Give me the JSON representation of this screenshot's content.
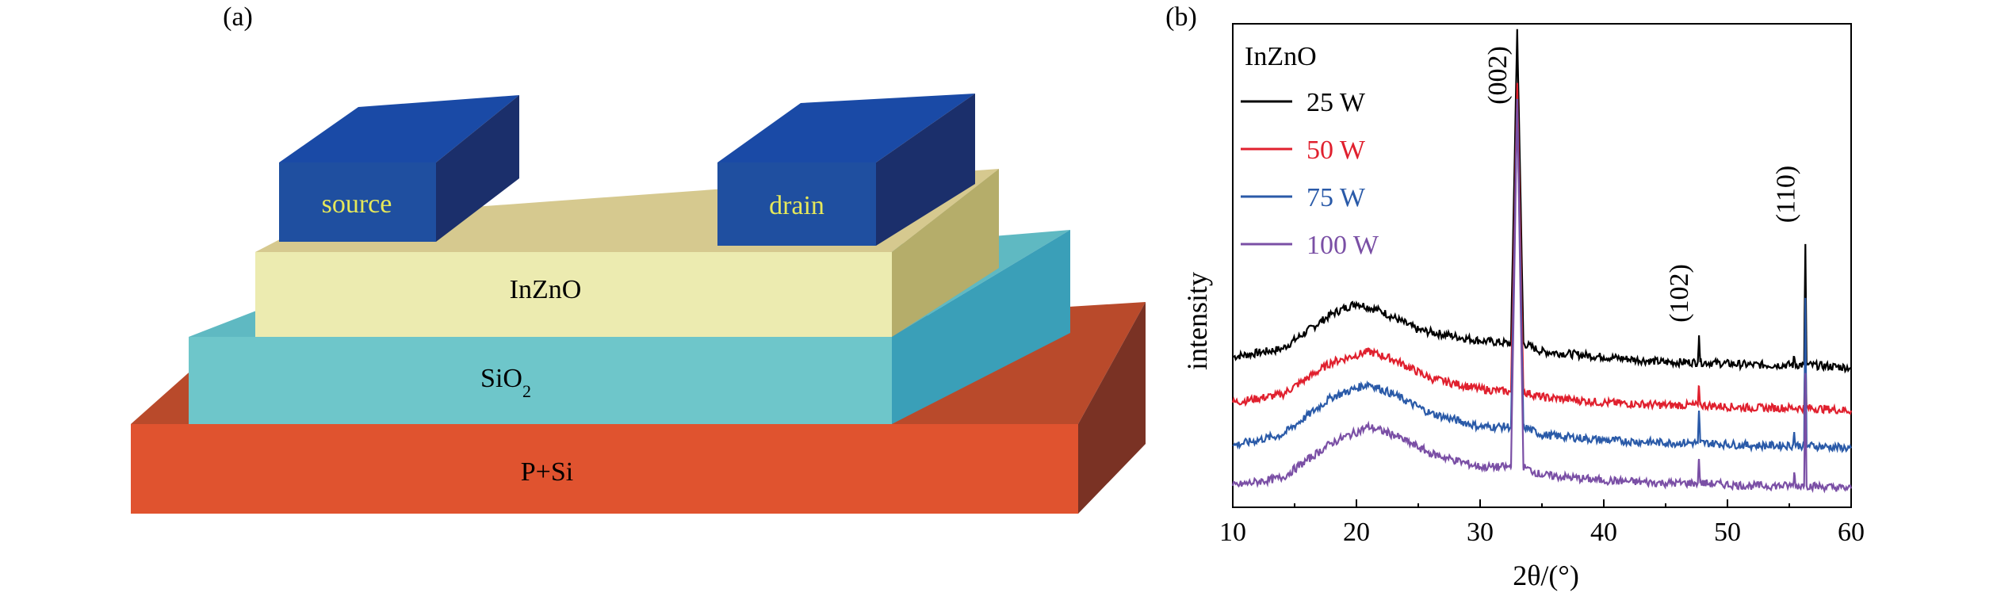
{
  "panel_a": {
    "label": "(a)",
    "layers": {
      "source": "source",
      "drain": "drain",
      "channel": "InZnO",
      "dielectric_main": "SiO",
      "dielectric_sub": "2",
      "substrate": "P+Si"
    }
  },
  "panel_b": {
    "label": "(b)",
    "peak_labels": [
      "(002)",
      "(102)",
      "(110)"
    ]
  },
  "colors": {
    "source_drain_front": "#1f4fa0",
    "source_drain_top": "#1a4aa6",
    "source_drain_side": "#1b2f6b",
    "ingzno_front": "#ecebb0",
    "sio2_front": "#6ec6ca",
    "substrate_front": "#e0532f",
    "series_25W": "#000000",
    "series_50W": "#e0202e",
    "series_75W": "#2a5aa8",
    "series_100W": "#7a4fa5"
  },
  "chart_data": {
    "type": "line",
    "title": "",
    "xlabel": "2θ/(°)",
    "ylabel": "intensity",
    "xlim": [
      10,
      60
    ],
    "xticks": [
      10,
      20,
      30,
      40,
      50,
      60
    ],
    "y_ticks_shown": false,
    "legend": {
      "title": "InZnO",
      "position": "top-left"
    },
    "series": [
      {
        "name": "25 W",
        "color": "#000000",
        "points": [
          [
            10,
            0.56
          ],
          [
            14,
            0.59
          ],
          [
            18,
            0.72
          ],
          [
            20,
            0.76
          ],
          [
            22,
            0.73
          ],
          [
            25,
            0.66
          ],
          [
            30,
            0.62
          ],
          [
            32.5,
            0.61
          ],
          [
            33.0,
            1.78
          ],
          [
            33.5,
            0.61
          ],
          [
            35,
            0.58
          ],
          [
            40,
            0.56
          ],
          [
            45,
            0.54
          ],
          [
            47.6,
            0.54
          ],
          [
            47.7,
            0.64
          ],
          [
            47.8,
            0.54
          ],
          [
            52,
            0.53
          ],
          [
            55.3,
            0.53
          ],
          [
            55.4,
            0.56
          ],
          [
            55.5,
            0.53
          ],
          [
            56.2,
            0.53
          ],
          [
            56.3,
            0.98
          ],
          [
            56.4,
            0.53
          ],
          [
            60,
            0.52
          ]
        ]
      },
      {
        "name": "50 W",
        "color": "#e0202e",
        "points": [
          [
            10,
            0.39
          ],
          [
            14,
            0.42
          ],
          [
            18,
            0.54
          ],
          [
            21,
            0.58
          ],
          [
            23,
            0.55
          ],
          [
            26,
            0.48
          ],
          [
            30,
            0.44
          ],
          [
            32.5,
            0.43
          ],
          [
            33.0,
            1.58
          ],
          [
            33.5,
            0.43
          ],
          [
            35,
            0.41
          ],
          [
            40,
            0.39
          ],
          [
            45,
            0.38
          ],
          [
            47.6,
            0.38
          ],
          [
            47.7,
            0.45
          ],
          [
            47.8,
            0.38
          ],
          [
            52,
            0.37
          ],
          [
            56.2,
            0.37
          ],
          [
            56.3,
            0.58
          ],
          [
            56.4,
            0.37
          ],
          [
            60,
            0.36
          ]
        ]
      },
      {
        "name": "75 W",
        "color": "#2a5aa8",
        "points": [
          [
            10,
            0.23
          ],
          [
            14,
            0.27
          ],
          [
            18,
            0.41
          ],
          [
            21,
            0.46
          ],
          [
            23,
            0.42
          ],
          [
            26,
            0.35
          ],
          [
            30,
            0.3
          ],
          [
            32.5,
            0.3
          ],
          [
            33.0,
            1.52
          ],
          [
            33.5,
            0.3
          ],
          [
            35,
            0.27
          ],
          [
            40,
            0.25
          ],
          [
            45,
            0.24
          ],
          [
            47.6,
            0.24
          ],
          [
            47.7,
            0.36
          ],
          [
            47.8,
            0.24
          ],
          [
            52,
            0.23
          ],
          [
            55.3,
            0.23
          ],
          [
            55.4,
            0.28
          ],
          [
            55.5,
            0.23
          ],
          [
            56.2,
            0.23
          ],
          [
            56.3,
            0.78
          ],
          [
            56.4,
            0.23
          ],
          [
            60,
            0.22
          ]
        ]
      },
      {
        "name": "100 W",
        "color": "#7a4fa5",
        "points": [
          [
            10,
            0.08
          ],
          [
            14,
            0.11
          ],
          [
            18,
            0.24
          ],
          [
            21,
            0.3
          ],
          [
            23,
            0.27
          ],
          [
            26,
            0.2
          ],
          [
            30,
            0.15
          ],
          [
            32.5,
            0.15
          ],
          [
            33.0,
            1.52
          ],
          [
            33.5,
            0.15
          ],
          [
            35,
            0.12
          ],
          [
            40,
            0.1
          ],
          [
            45,
            0.09
          ],
          [
            47.6,
            0.09
          ],
          [
            47.7,
            0.18
          ],
          [
            47.8,
            0.09
          ],
          [
            52,
            0.08
          ],
          [
            55.3,
            0.08
          ],
          [
            55.4,
            0.13
          ],
          [
            55.5,
            0.08
          ],
          [
            56.2,
            0.08
          ],
          [
            56.3,
            0.5
          ],
          [
            56.4,
            0.08
          ],
          [
            60,
            0.07
          ]
        ]
      }
    ],
    "annotations": [
      {
        "text": "(002)",
        "x": 33.0,
        "orientation": "vertical"
      },
      {
        "text": "(102)",
        "x": 47.7,
        "orientation": "vertical"
      },
      {
        "text": "(110)",
        "x": 56.3,
        "orientation": "vertical"
      }
    ]
  }
}
